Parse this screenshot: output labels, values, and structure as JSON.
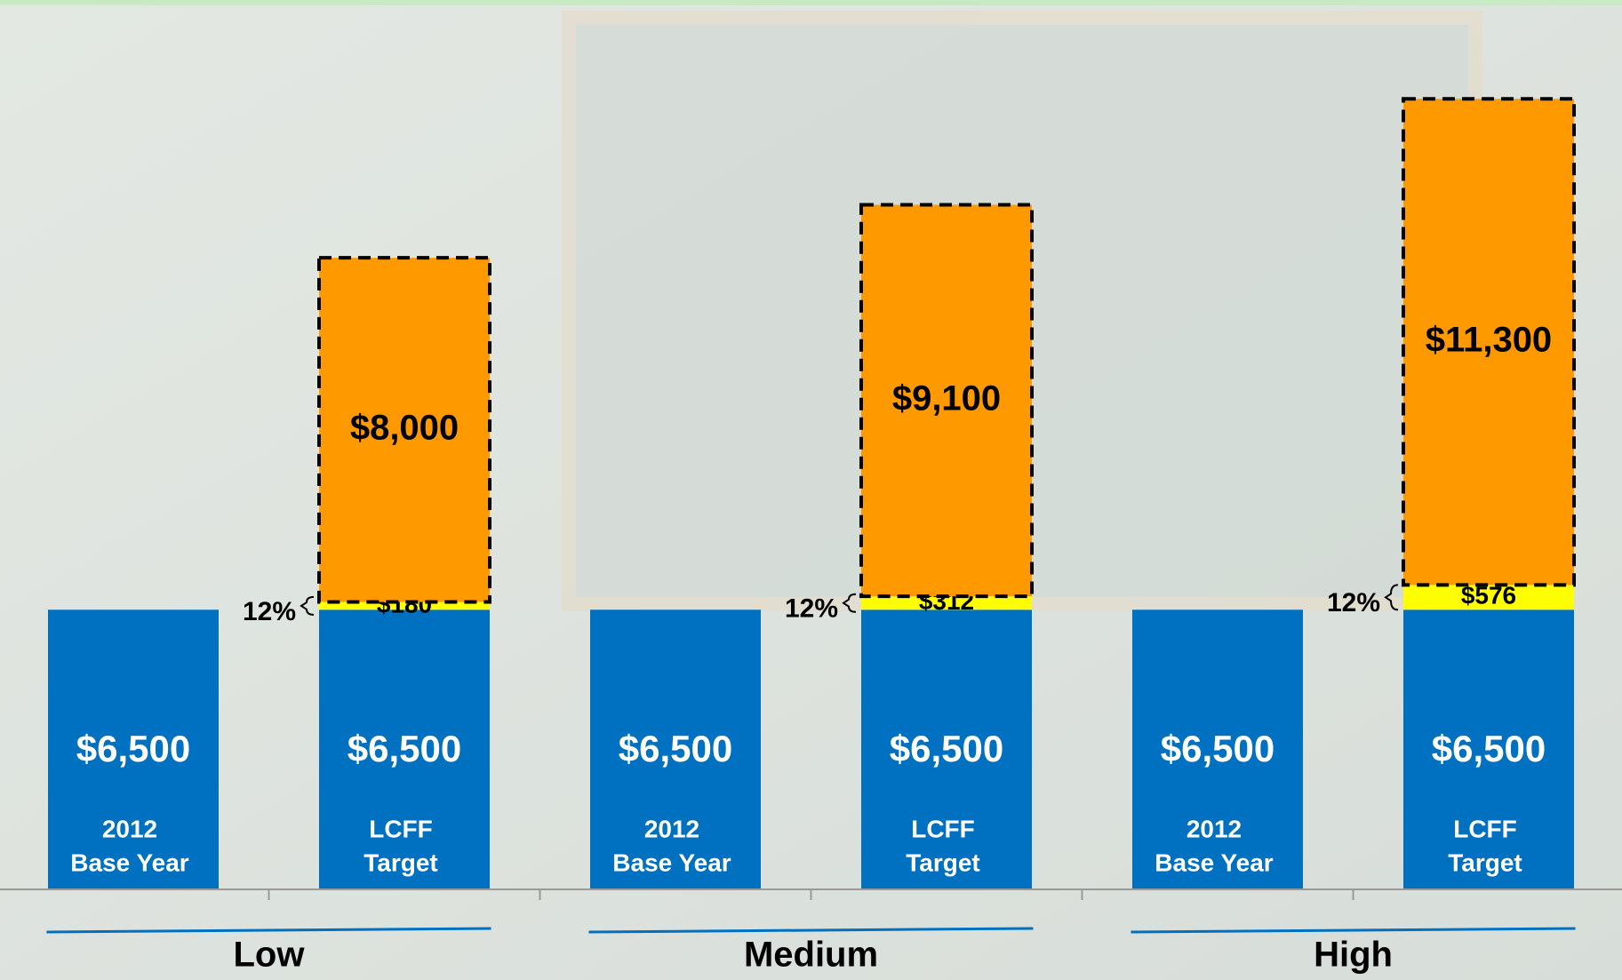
{
  "chart_data": {
    "type": "bar",
    "stacked": true,
    "groups": [
      "Low",
      "Medium",
      "High"
    ],
    "categories": [
      [
        "2012",
        "Base Year"
      ],
      [
        "LCFF",
        "Target"
      ],
      [
        "2012",
        "Base Year"
      ],
      [
        "LCFF",
        "Target"
      ],
      [
        "2012",
        "Base Year"
      ],
      [
        "LCFF",
        "Target"
      ]
    ],
    "series": [
      {
        "color": "#0070c0",
        "values": [
          6500,
          6500,
          6500,
          6500,
          6500,
          6500
        ],
        "value_labels": [
          "$6,500",
          "$6,500",
          "$6,500",
          "$6,500",
          "$6,500",
          "$6,500"
        ]
      },
      {
        "color": "#ffff00",
        "values": [
          null,
          180,
          null,
          312,
          null,
          576
        ],
        "value_labels": [
          null,
          "$180",
          null,
          "$312",
          null,
          "$576"
        ]
      },
      {
        "color": "#ff9900",
        "dashed": true,
        "values": [
          null,
          8000,
          null,
          9100,
          null,
          11300
        ],
        "value_labels": [
          null,
          "$8,000",
          null,
          "$9,100",
          null,
          "$11,300"
        ]
      }
    ],
    "annotations": [
      null,
      "12%",
      null,
      "12%",
      null,
      "12%"
    ],
    "ylim": [
      0,
      19000
    ]
  }
}
